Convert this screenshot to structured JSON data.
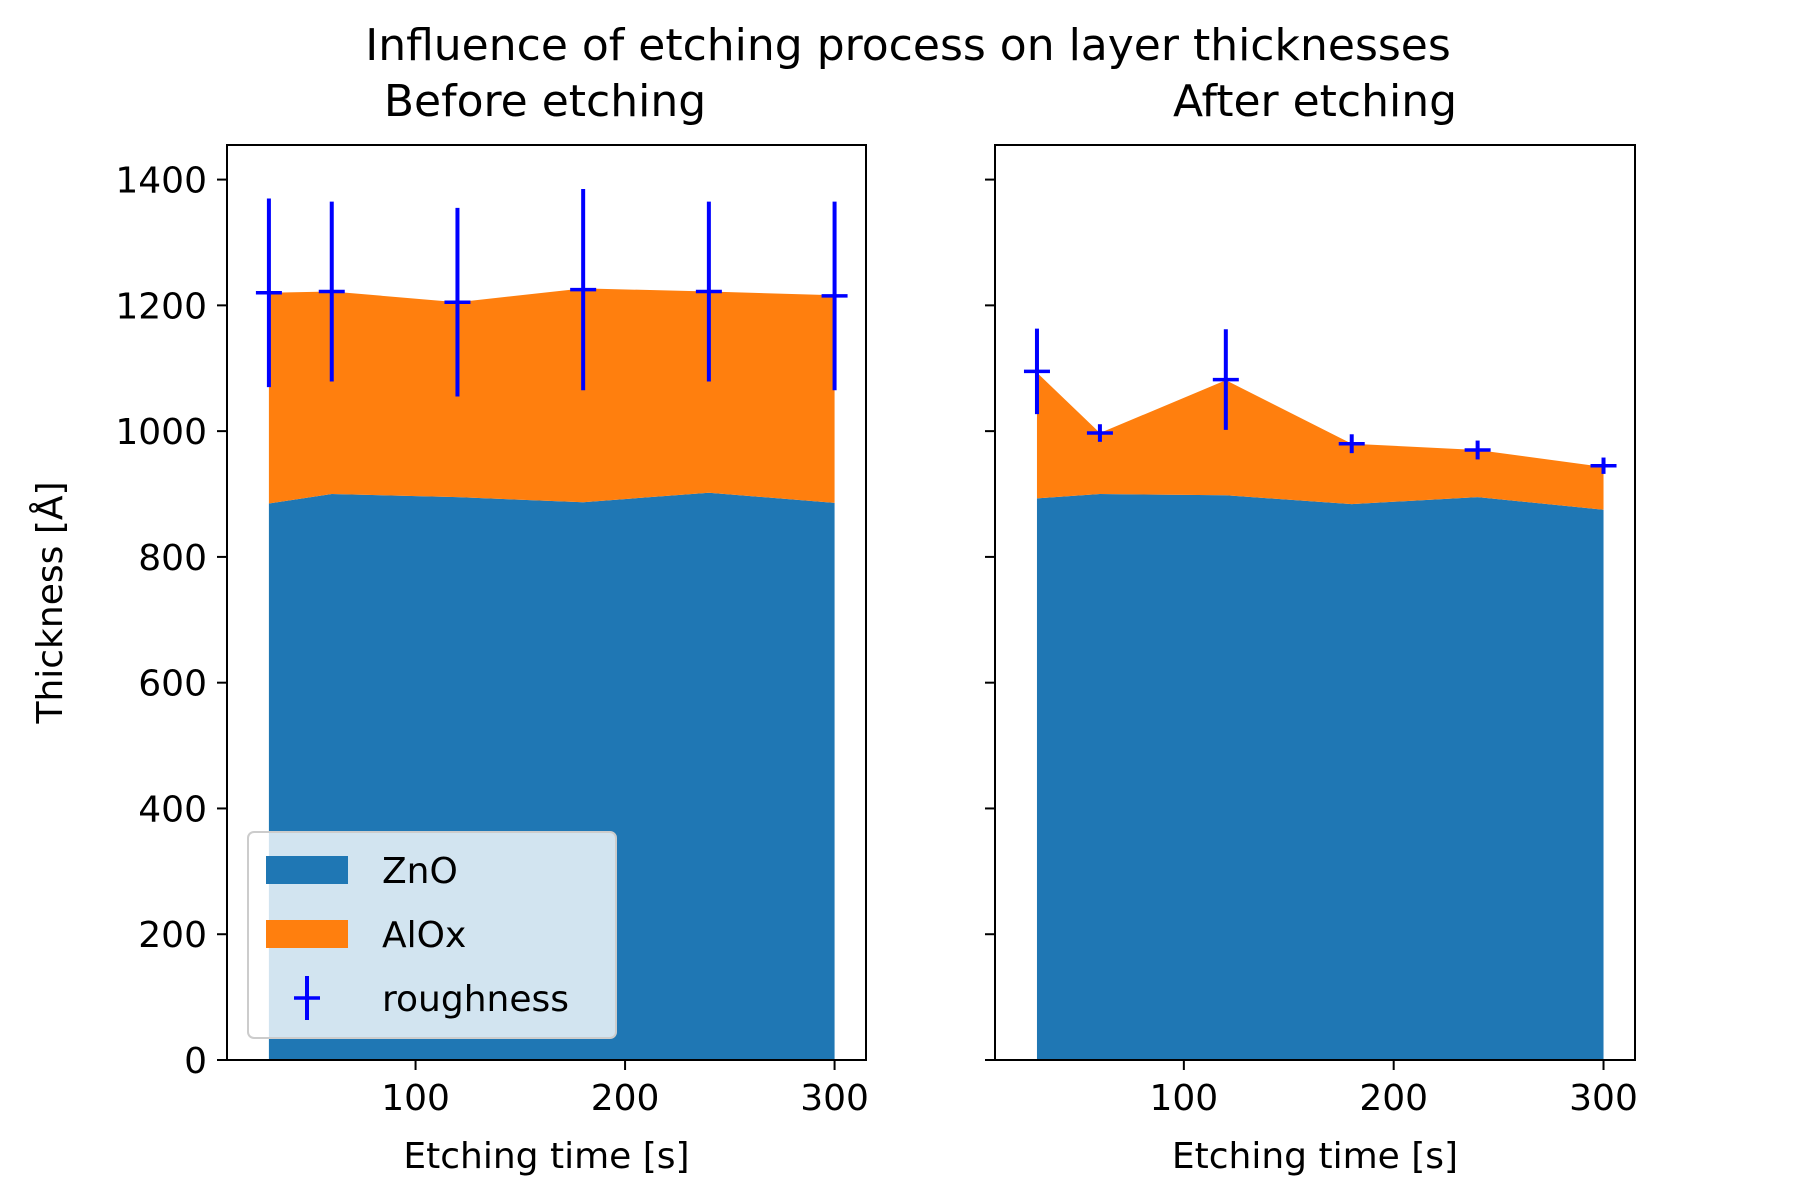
{
  "chart_data": [
    {
      "type": "area",
      "suptitle": "Influence of etching process on layer thicknesses",
      "title": "Before etching",
      "xlabel": "Etching time [s]",
      "ylabel": "Thickness [Å]",
      "x": [
        30,
        60,
        120,
        180,
        240,
        300
      ],
      "xlim": [
        10,
        315
      ],
      "ylim": [
        0,
        1455
      ],
      "xticks": [
        100,
        200,
        300
      ],
      "yticks": [
        0,
        200,
        400,
        600,
        800,
        1000,
        1200,
        1400
      ],
      "series": [
        {
          "name": "ZnO",
          "color": "#1f77b4",
          "values": [
            885,
            900,
            895,
            887,
            902,
            886
          ]
        },
        {
          "name": "AlOx",
          "color": "#ff7f0e",
          "values": [
            335,
            322,
            310,
            340,
            320,
            330
          ]
        }
      ],
      "roughness": {
        "name": "roughness",
        "color": "#0000ff",
        "y": [
          1220,
          1222,
          1205,
          1225,
          1222,
          1215
        ],
        "yerr": [
          150,
          143,
          150,
          160,
          143,
          150
        ]
      },
      "legend": {
        "position": "lower-left"
      }
    },
    {
      "type": "area",
      "title": "After etching",
      "xlabel": "Etching time [s]",
      "ylabel": "",
      "x": [
        30,
        60,
        120,
        180,
        240,
        300
      ],
      "xlim": [
        10,
        315
      ],
      "ylim": [
        0,
        1455
      ],
      "xticks": [
        100,
        200,
        300
      ],
      "yticks": [
        0,
        200,
        400,
        600,
        800,
        1000,
        1200,
        1400
      ],
      "series": [
        {
          "name": "ZnO",
          "color": "#1f77b4",
          "values": [
            893,
            900,
            898,
            884,
            895,
            875
          ]
        },
        {
          "name": "AlOx",
          "color": "#ff7f0e",
          "values": [
            200,
            97,
            183,
            96,
            75,
            68
          ]
        }
      ],
      "roughness": {
        "name": "roughness",
        "color": "#0000ff",
        "y": [
          1095,
          997,
          1082,
          980,
          970,
          945
        ],
        "yerr": [
          68,
          14,
          80,
          15,
          15,
          13
        ]
      }
    }
  ]
}
